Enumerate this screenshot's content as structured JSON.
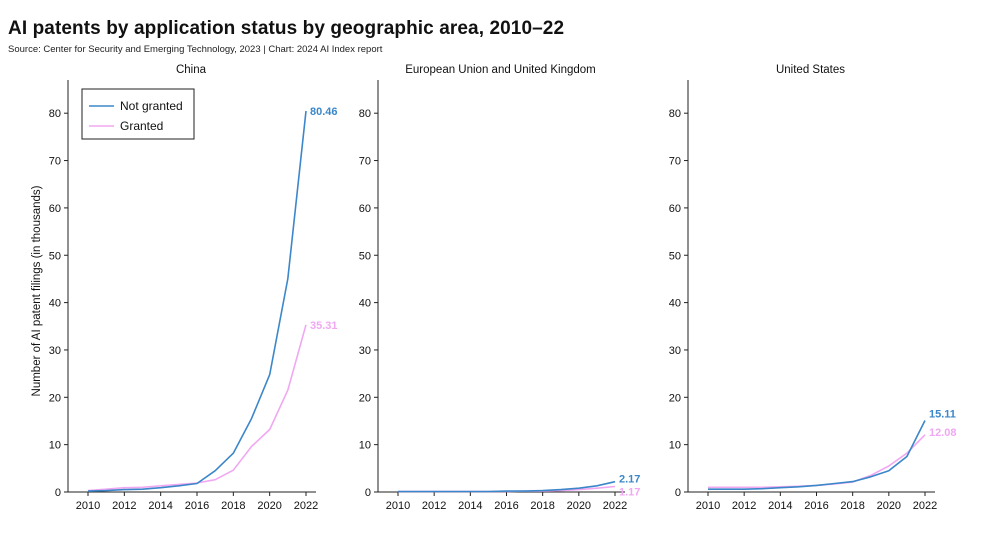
{
  "header": {
    "title": "AI patents by application status by geographic area, 2010–22",
    "source": "Source: Center for Security and Emerging Technology, 2023 | Chart: 2024 AI Index report"
  },
  "colors": {
    "not_granted": "#3b87c9",
    "granted": "#f0a8f2",
    "axis": "#222222"
  },
  "chart_data": [
    {
      "type": "line",
      "title": "China",
      "xlabel": "",
      "ylabel": "Number of AI patent filings (in thousands)",
      "x": [
        2010,
        2011,
        2012,
        2013,
        2014,
        2015,
        2016,
        2017,
        2018,
        2019,
        2020,
        2021,
        2022
      ],
      "xticks": [
        "2010",
        "2012",
        "2014",
        "2016",
        "2018",
        "2020",
        "2022"
      ],
      "yticks": [
        "0",
        "10",
        "20",
        "30",
        "40",
        "50",
        "60",
        "70",
        "80"
      ],
      "ylim": [
        0,
        85
      ],
      "legend": {
        "placement": "top-left",
        "entries": [
          "Not granted",
          "Granted"
        ]
      },
      "series": [
        {
          "name": "Not granted",
          "values": [
            0.2,
            0.3,
            0.5,
            0.6,
            0.9,
            1.3,
            1.8,
            4.5,
            8.2,
            15.5,
            24.8,
            45,
            80.46
          ],
          "end_label": "80.46"
        },
        {
          "name": "Granted",
          "values": [
            0.3,
            0.6,
            0.9,
            1.0,
            1.3,
            1.6,
            1.9,
            2.6,
            4.6,
            9.6,
            13.2,
            21.5,
            35.31
          ],
          "end_label": "35.31"
        }
      ]
    },
    {
      "type": "line",
      "title": "European Union and United Kingdom",
      "xlabel": "",
      "ylabel": "",
      "x": [
        2010,
        2011,
        2012,
        2013,
        2014,
        2015,
        2016,
        2017,
        2018,
        2019,
        2020,
        2021,
        2022
      ],
      "xticks": [
        "2010",
        "2012",
        "2014",
        "2016",
        "2018",
        "2020",
        "2022"
      ],
      "yticks": [
        "0",
        "10",
        "20",
        "30",
        "40",
        "50",
        "60",
        "70",
        "80"
      ],
      "ylim": [
        0,
        85
      ],
      "series": [
        {
          "name": "Not granted",
          "values": [
            0.1,
            0.1,
            0.1,
            0.1,
            0.1,
            0.1,
            0.2,
            0.2,
            0.3,
            0.5,
            0.8,
            1.3,
            2.17
          ],
          "end_label": "2.17"
        },
        {
          "name": "Granted",
          "values": [
            0.1,
            0.1,
            0.1,
            0.1,
            0.1,
            0.1,
            0.1,
            0.2,
            0.2,
            0.3,
            0.5,
            0.8,
            1.17
          ],
          "end_label": "1.17"
        }
      ]
    },
    {
      "type": "line",
      "title": "United States",
      "xlabel": "",
      "ylabel": "",
      "x": [
        2010,
        2011,
        2012,
        2013,
        2014,
        2015,
        2016,
        2017,
        2018,
        2019,
        2020,
        2021,
        2022
      ],
      "xticks": [
        "2010",
        "2012",
        "2014",
        "2016",
        "2018",
        "2020",
        "2022"
      ],
      "yticks": [
        "0",
        "10",
        "20",
        "30",
        "40",
        "50",
        "60",
        "70",
        "80"
      ],
      "ylim": [
        0,
        85
      ],
      "series": [
        {
          "name": "Not granted",
          "values": [
            0.6,
            0.6,
            0.6,
            0.7,
            0.9,
            1.1,
            1.4,
            1.8,
            2.2,
            3.2,
            4.5,
            7.5,
            15.11
          ],
          "end_label": "15.11"
        },
        {
          "name": "Granted",
          "values": [
            1.0,
            1.0,
            1.0,
            1.0,
            1.1,
            1.2,
            1.4,
            1.7,
            2.1,
            3.5,
            5.5,
            8.2,
            12.08
          ],
          "end_label": "12.08"
        }
      ]
    }
  ]
}
